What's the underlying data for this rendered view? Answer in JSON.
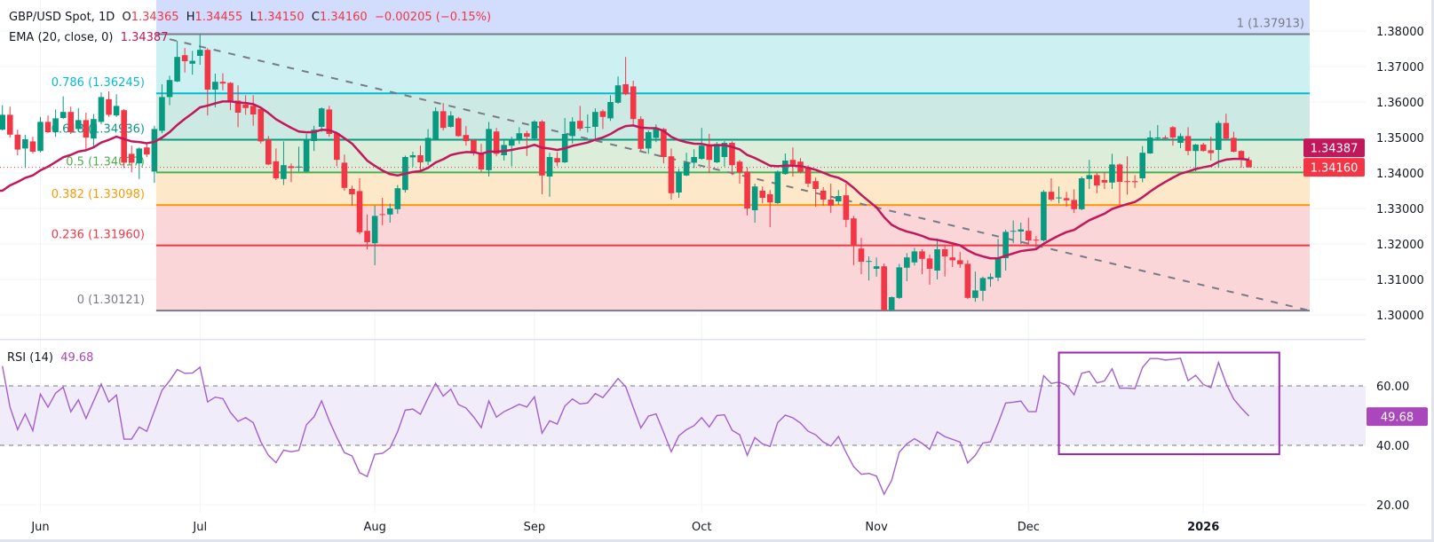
{
  "header": {
    "symbol": "GBP/USD Spot, 1D",
    "o_label": "O",
    "o_value": "1.34365",
    "h_label": "H",
    "h_value": "1.34455",
    "l_label": "L",
    "l_value": "1.34150",
    "c_label": "C",
    "c_value": "1.34160",
    "change": "−0.00205 (−0.15%)",
    "ema_label": "EMA (20, close, 0)",
    "ema_value": "1.34387"
  },
  "rsi_header": {
    "label": "RSI (14)",
    "value": "49.68"
  },
  "colors": {
    "up": "#089981",
    "down": "#f23645",
    "ema": "#c2185b",
    "rsi": "#a35fd0",
    "rsi_badge": "#ab47bc",
    "last_price": "#f23645",
    "trendline": "#787b86",
    "rsi_box": "#9c27b0"
  },
  "chart_data": {
    "type": "candlestick",
    "symbol": "GBP/USD Spot",
    "interval": "1D",
    "price_axis": {
      "range": [
        1.2985,
        1.3888
      ],
      "ticks": [
        {
          "value": 1.38,
          "label": "1.38000"
        },
        {
          "value": 1.37,
          "label": "1.37000"
        },
        {
          "value": 1.36,
          "label": "1.36000"
        },
        {
          "value": 1.35,
          "label": "1.35000"
        },
        {
          "value": 1.34,
          "label": "1.34000"
        },
        {
          "value": 1.33,
          "label": "1.33000"
        },
        {
          "value": 1.32,
          "label": "1.32000"
        },
        {
          "value": 1.31,
          "label": "1.31000"
        },
        {
          "value": 1.3,
          "label": "1.30000"
        }
      ]
    },
    "time_labels": [
      {
        "label": "Jun",
        "bar": 5
      },
      {
        "label": "Jul",
        "bar": 26
      },
      {
        "label": "Aug",
        "bar": 49
      },
      {
        "label": "Sep",
        "bar": 70
      },
      {
        "label": "Oct",
        "bar": 92
      },
      {
        "label": "Nov",
        "bar": 115
      },
      {
        "label": "Dec",
        "bar": 135
      },
      {
        "label": "2026",
        "bar": 158,
        "bold": true
      }
    ],
    "candles_ohlc": [
      [
        1.3522,
        1.3591,
        1.352,
        1.3564
      ],
      [
        1.3564,
        1.3587,
        1.35,
        1.3508
      ],
      [
        1.3508,
        1.3522,
        1.345,
        1.3466
      ],
      [
        1.3469,
        1.3508,
        1.3414,
        1.3495
      ],
      [
        1.3489,
        1.3502,
        1.3455,
        1.346
      ],
      [
        1.3462,
        1.3558,
        1.3458,
        1.3544
      ],
      [
        1.3544,
        1.3562,
        1.3512,
        1.3515
      ],
      [
        1.3515,
        1.3579,
        1.3502,
        1.3554
      ],
      [
        1.3555,
        1.3616,
        1.3552,
        1.3572
      ],
      [
        1.3572,
        1.3587,
        1.351,
        1.3515
      ],
      [
        1.3524,
        1.3583,
        1.352,
        1.3549
      ],
      [
        1.3549,
        1.357,
        1.3466,
        1.35
      ],
      [
        1.3497,
        1.3566,
        1.3474,
        1.3552
      ],
      [
        1.3544,
        1.3627,
        1.3537,
        1.3614
      ],
      [
        1.3608,
        1.363,
        1.3558,
        1.3564
      ],
      [
        1.3562,
        1.3622,
        1.3558,
        1.3589
      ],
      [
        1.3577,
        1.358,
        1.3414,
        1.3429
      ],
      [
        1.3454,
        1.3477,
        1.3402,
        1.3429
      ],
      [
        1.3427,
        1.3472,
        1.3383,
        1.3469
      ],
      [
        1.3472,
        1.3483,
        1.3445,
        1.3452
      ],
      [
        1.3404,
        1.3533,
        1.3372,
        1.3524
      ],
      [
        1.3519,
        1.365,
        1.3512,
        1.3614
      ],
      [
        1.3614,
        1.3674,
        1.3591,
        1.3662
      ],
      [
        1.3658,
        1.3772,
        1.3656,
        1.3727
      ],
      [
        1.3732,
        1.3752,
        1.3683,
        1.3715
      ],
      [
        1.3708,
        1.3744,
        1.3677,
        1.3716
      ],
      [
        1.373,
        1.3789,
        1.3705,
        1.3747
      ],
      [
        1.3747,
        1.3752,
        1.3562,
        1.3635
      ],
      [
        1.3635,
        1.368,
        1.3585,
        1.3657
      ],
      [
        1.3657,
        1.3681,
        1.3633,
        1.3652
      ],
      [
        1.3654,
        1.3656,
        1.3577,
        1.3604
      ],
      [
        1.3604,
        1.3647,
        1.3529,
        1.357
      ],
      [
        1.3593,
        1.3619,
        1.3564,
        1.3583
      ],
      [
        1.3589,
        1.3619,
        1.3533,
        1.3565
      ],
      [
        1.358,
        1.3582,
        1.3483,
        1.3489
      ],
      [
        1.3494,
        1.3504,
        1.3422,
        1.3424
      ],
      [
        1.3433,
        1.3469,
        1.338,
        1.3385
      ],
      [
        1.3383,
        1.3489,
        1.3366,
        1.3422
      ],
      [
        1.3419,
        1.3427,
        1.3374,
        1.3414
      ],
      [
        1.3415,
        1.3474,
        1.3404,
        1.3418
      ],
      [
        1.3404,
        1.351,
        1.3402,
        1.3495
      ],
      [
        1.349,
        1.3533,
        1.3462,
        1.3522
      ],
      [
        1.353,
        1.3585,
        1.3516,
        1.3582
      ],
      [
        1.3579,
        1.3589,
        1.3502,
        1.351
      ],
      [
        1.3512,
        1.3514,
        1.3419,
        1.3437
      ],
      [
        1.3429,
        1.3452,
        1.335,
        1.3358
      ],
      [
        1.3355,
        1.3364,
        1.3308,
        1.334
      ],
      [
        1.3349,
        1.3385,
        1.3227,
        1.3233
      ],
      [
        1.3237,
        1.3283,
        1.3185,
        1.3205
      ],
      [
        1.3202,
        1.3308,
        1.314,
        1.3279
      ],
      [
        1.3284,
        1.333,
        1.3252,
        1.3282
      ],
      [
        1.3283,
        1.3314,
        1.326,
        1.33
      ],
      [
        1.3298,
        1.3366,
        1.3285,
        1.3357
      ],
      [
        1.3352,
        1.3449,
        1.3345,
        1.3445
      ],
      [
        1.3444,
        1.346,
        1.3417,
        1.345
      ],
      [
        1.345,
        1.3477,
        1.3402,
        1.343
      ],
      [
        1.3432,
        1.3524,
        1.3422,
        1.3499
      ],
      [
        1.3495,
        1.3585,
        1.3493,
        1.3574
      ],
      [
        1.3574,
        1.3597,
        1.352,
        1.3527
      ],
      [
        1.353,
        1.3574,
        1.3528,
        1.3562
      ],
      [
        1.3554,
        1.3558,
        1.3502,
        1.3504
      ],
      [
        1.3507,
        1.3532,
        1.3477,
        1.349
      ],
      [
        1.3493,
        1.3495,
        1.3449,
        1.3455
      ],
      [
        1.3457,
        1.3482,
        1.3404,
        1.341
      ],
      [
        1.3408,
        1.3544,
        1.339,
        1.3524
      ],
      [
        1.3517,
        1.3527,
        1.3447,
        1.3454
      ],
      [
        1.345,
        1.3494,
        1.3435,
        1.3479
      ],
      [
        1.3477,
        1.3502,
        1.3419,
        1.3495
      ],
      [
        1.3495,
        1.3529,
        1.3482,
        1.3512
      ],
      [
        1.3512,
        1.3519,
        1.3448,
        1.3502
      ],
      [
        1.3497,
        1.3549,
        1.3495,
        1.3545
      ],
      [
        1.3545,
        1.3549,
        1.334,
        1.3393
      ],
      [
        1.339,
        1.3457,
        1.3333,
        1.3445
      ],
      [
        1.3442,
        1.3459,
        1.3419,
        1.343
      ],
      [
        1.343,
        1.3555,
        1.3428,
        1.351
      ],
      [
        1.3504,
        1.3557,
        1.3483,
        1.3545
      ],
      [
        1.3547,
        1.3589,
        1.3519,
        1.3525
      ],
      [
        1.3529,
        1.3565,
        1.3514,
        1.353
      ],
      [
        1.353,
        1.3582,
        1.3495,
        1.3572
      ],
      [
        1.3574,
        1.3579,
        1.3524,
        1.3558
      ],
      [
        1.3554,
        1.3619,
        1.3547,
        1.36
      ],
      [
        1.3598,
        1.3672,
        1.3595,
        1.3647
      ],
      [
        1.365,
        1.3727,
        1.3619,
        1.3622
      ],
      [
        1.3644,
        1.366,
        1.3537,
        1.3552
      ],
      [
        1.3552,
        1.356,
        1.3462,
        1.3468
      ],
      [
        1.3469,
        1.352,
        1.3454,
        1.3515
      ],
      [
        1.3499,
        1.3537,
        1.3487,
        1.3524
      ],
      [
        1.3524,
        1.3527,
        1.3427,
        1.3445
      ],
      [
        1.3447,
        1.3469,
        1.3325,
        1.3343
      ],
      [
        1.3345,
        1.3412,
        1.333,
        1.3404
      ],
      [
        1.3393,
        1.3457,
        1.3391,
        1.3429
      ],
      [
        1.3429,
        1.3467,
        1.3414,
        1.3445
      ],
      [
        1.344,
        1.3527,
        1.3437,
        1.3477
      ],
      [
        1.3477,
        1.351,
        1.34,
        1.3437
      ],
      [
        1.343,
        1.3487,
        1.3428,
        1.3482
      ],
      [
        1.3445,
        1.349,
        1.3418,
        1.3485
      ],
      [
        1.3485,
        1.3489,
        1.3394,
        1.3422
      ],
      [
        1.3432,
        1.3437,
        1.337,
        1.3402
      ],
      [
        1.3404,
        1.3416,
        1.328,
        1.33
      ],
      [
        1.3295,
        1.337,
        1.326,
        1.3362
      ],
      [
        1.335,
        1.3362,
        1.3315,
        1.333
      ],
      [
        1.334,
        1.3352,
        1.3247,
        1.3317
      ],
      [
        1.3315,
        1.3407,
        1.3313,
        1.3404
      ],
      [
        1.3397,
        1.3455,
        1.3395,
        1.3435
      ],
      [
        1.3437,
        1.3472,
        1.339,
        1.3424
      ],
      [
        1.3432,
        1.3442,
        1.3399,
        1.3403
      ],
      [
        1.3417,
        1.3422,
        1.336,
        1.337
      ],
      [
        1.3377,
        1.3387,
        1.3305,
        1.3355
      ],
      [
        1.335,
        1.336,
        1.3308,
        1.3325
      ],
      [
        1.3325,
        1.337,
        1.3287,
        1.3308
      ],
      [
        1.332,
        1.3352,
        1.331,
        1.3335
      ],
      [
        1.3337,
        1.337,
        1.3247,
        1.3268
      ],
      [
        1.3272,
        1.3279,
        1.314,
        1.3195
      ],
      [
        1.3187,
        1.3217,
        1.3115,
        1.315
      ],
      [
        1.315,
        1.3165,
        1.3097,
        1.3152
      ],
      [
        1.313,
        1.3162,
        1.3108,
        1.3137
      ],
      [
        1.3137,
        1.3145,
        1.3012,
        1.3014
      ],
      [
        1.3014,
        1.3052,
        1.301,
        1.305
      ],
      [
        1.3048,
        1.3144,
        1.3045,
        1.3134
      ],
      [
        1.3133,
        1.3174,
        1.3095,
        1.3162
      ],
      [
        1.3148,
        1.3189,
        1.3139,
        1.3179
      ],
      [
        1.3179,
        1.3185,
        1.3115,
        1.3158
      ],
      [
        1.3159,
        1.317,
        1.3085,
        1.313
      ],
      [
        1.3125,
        1.3215,
        1.31,
        1.3185
      ],
      [
        1.3185,
        1.3198,
        1.3108,
        1.3165
      ],
      [
        1.3162,
        1.3194,
        1.3135,
        1.3154
      ],
      [
        1.3154,
        1.3177,
        1.3133,
        1.3143
      ],
      [
        1.3144,
        1.3154,
        1.3045,
        1.3048
      ],
      [
        1.3048,
        1.3122,
        1.3037,
        1.3069
      ],
      [
        1.3068,
        1.3108,
        1.3039,
        1.3104
      ],
      [
        1.3101,
        1.3117,
        1.3079,
        1.3107
      ],
      [
        1.3105,
        1.3214,
        1.3095,
        1.3162
      ],
      [
        1.316,
        1.324,
        1.3125,
        1.3234
      ],
      [
        1.3235,
        1.3266,
        1.3202,
        1.3237
      ],
      [
        1.3235,
        1.326,
        1.32,
        1.3241
      ],
      [
        1.3237,
        1.3274,
        1.3195,
        1.321
      ],
      [
        1.3212,
        1.3222,
        1.3183,
        1.321
      ],
      [
        1.321,
        1.3352,
        1.3207,
        1.3347
      ],
      [
        1.3347,
        1.3385,
        1.332,
        1.3325
      ],
      [
        1.3329,
        1.3362,
        1.3314,
        1.3331
      ],
      [
        1.3329,
        1.3347,
        1.3305,
        1.3323
      ],
      [
        1.3324,
        1.3354,
        1.3287,
        1.3298
      ],
      [
        1.3298,
        1.339,
        1.3295,
        1.3385
      ],
      [
        1.3383,
        1.3437,
        1.3355,
        1.3394
      ],
      [
        1.3394,
        1.34,
        1.3343,
        1.3365
      ],
      [
        1.338,
        1.3402,
        1.3355,
        1.3373
      ],
      [
        1.3373,
        1.3454,
        1.3355,
        1.3424
      ],
      [
        1.3424,
        1.3427,
        1.331,
        1.3375
      ],
      [
        1.3377,
        1.3447,
        1.3339,
        1.3375
      ],
      [
        1.3377,
        1.3394,
        1.3358,
        1.3374
      ],
      [
        1.3385,
        1.3476,
        1.3374,
        1.3457
      ],
      [
        1.3455,
        1.3519,
        1.3454,
        1.35
      ],
      [
        1.3498,
        1.3535,
        1.3496,
        1.35
      ],
      [
        1.35,
        1.3506,
        1.3495,
        1.3497
      ],
      [
        1.3529,
        1.3532,
        1.3477,
        1.35
      ],
      [
        1.3485,
        1.3512,
        1.347,
        1.3504
      ],
      [
        1.3504,
        1.3529,
        1.345,
        1.3462
      ],
      [
        1.3462,
        1.3482,
        1.3405,
        1.348
      ],
      [
        1.348,
        1.3485,
        1.346,
        1.3462
      ],
      [
        1.3464,
        1.3502,
        1.3435,
        1.3456
      ],
      [
        1.3465,
        1.3547,
        1.3415,
        1.3541
      ],
      [
        1.3541,
        1.3567,
        1.3494,
        1.3497
      ],
      [
        1.3499,
        1.3516,
        1.3458,
        1.346
      ],
      [
        1.3462,
        1.3464,
        1.3415,
        1.3437
      ],
      [
        1.34365,
        1.34455,
        1.3415,
        1.3416
      ]
    ],
    "ema": {
      "period": 20,
      "source": "close",
      "last": 1.34387,
      "badge": "1.34387"
    },
    "last_price": {
      "value": 1.3416,
      "badge": "1.34160"
    },
    "fib_levels": [
      {
        "ratio": 1,
        "price": 1.37913,
        "label": "1 (1.37913)",
        "line": "#787b86",
        "fill": "#e3e4e7"
      },
      {
        "ratio": 0.786,
        "price": 1.36245,
        "label": "0.786 (1.36245)",
        "line": "#00bcd4",
        "fill": "#cdf0f3"
      },
      {
        "ratio": 0.618,
        "price": 1.34936,
        "label": "0.618 (1.34936)",
        "line": "#089981",
        "fill": "#cde9e3"
      },
      {
        "ratio": 0.5,
        "price": 1.34017,
        "label": "0.5 (1.34017)",
        "line": "#4caf50",
        "fill": "#dcedd9"
      },
      {
        "ratio": 0.382,
        "price": 1.33098,
        "label": "0.382 (1.33098)",
        "line": "#ff9800",
        "fill": "#fde9c9"
      },
      {
        "ratio": 0.236,
        "price": 1.3196,
        "label": "0.236 (1.31960)",
        "line": "#f23645",
        "fill": "#fad6d9"
      },
      {
        "ratio": 0,
        "price": 1.30121,
        "label": "0 (1.30121)",
        "line": "#787b86",
        "fill": null
      }
    ],
    "fib_extension_fill": "#d2dcfc",
    "fib_start_bar": 20,
    "trendline": {
      "from": {
        "bar": 22,
        "price": 1.3777
      },
      "to": {
        "bar": 172,
        "price": 1.30121
      },
      "style": "dashed"
    },
    "rsi": {
      "period": 14,
      "value": 49.68,
      "badge": "49.68",
      "range": [
        16,
        83
      ],
      "upper": 60,
      "lower": 40,
      "ticks": [
        {
          "value": 60,
          "label": "60.00"
        },
        {
          "value": 40,
          "label": "40.00"
        },
        {
          "value": 20,
          "label": "20.00"
        }
      ],
      "highlight_box": {
        "from_bar": 139,
        "to_bar": 168,
        "rsi_top": 71.2,
        "rsi_bottom": 37
      }
    }
  }
}
